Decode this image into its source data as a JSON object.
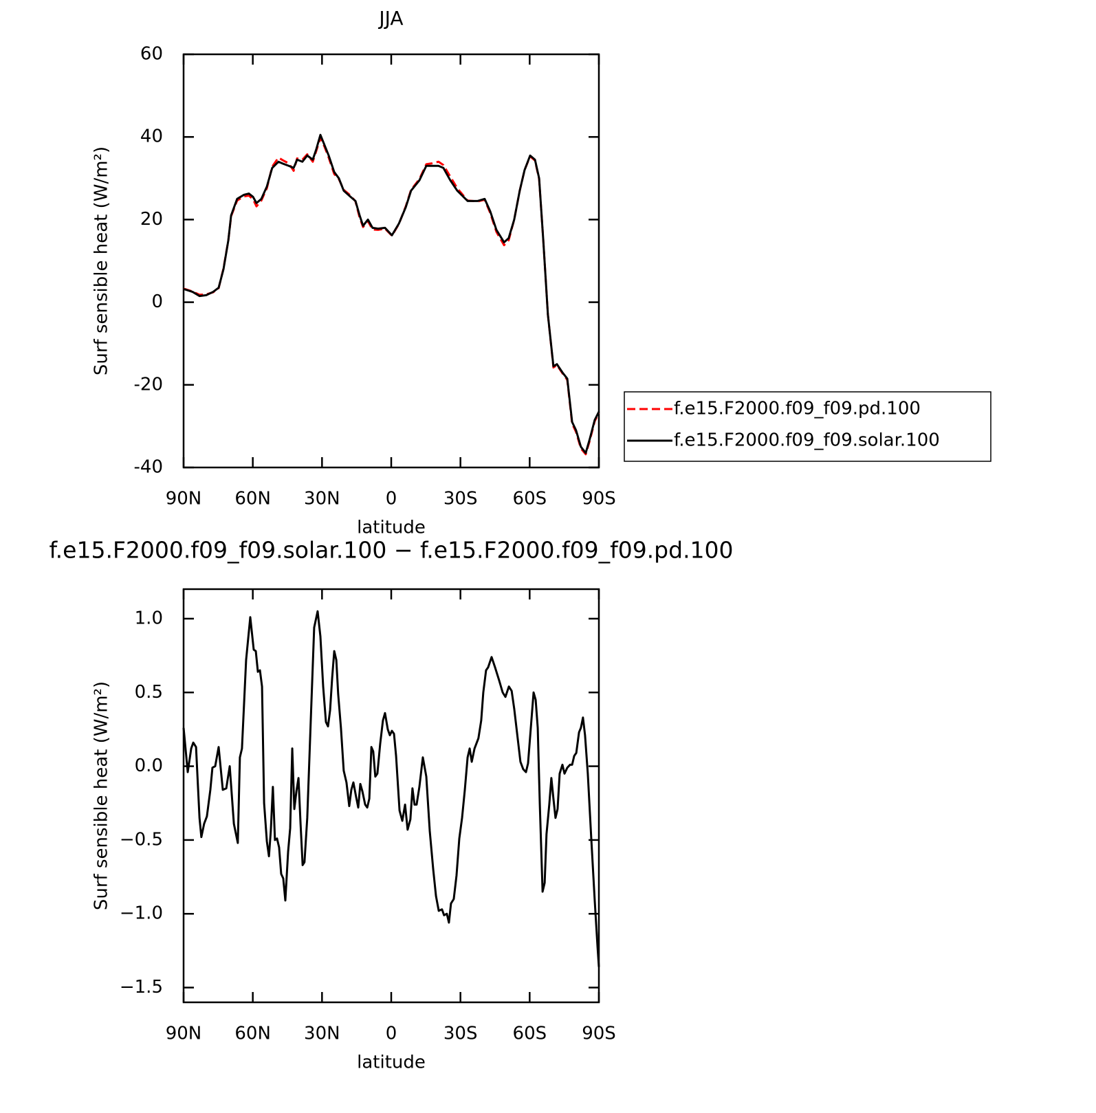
{
  "chart_data": [
    {
      "type": "line",
      "title": "JJA",
      "y_label": "Surf sensible heat (W/m²)",
      "x_label": "latitude",
      "xlim": [
        90,
        -90
      ],
      "xticks": [
        {
          "value": 90,
          "label": "90N"
        },
        {
          "value": 60,
          "label": "60N"
        },
        {
          "value": 30,
          "label": "30N"
        },
        0,
        {
          "value": -30,
          "label": "30S"
        },
        {
          "value": -60,
          "label": "60S"
        },
        {
          "value": -90,
          "label": "90S"
        }
      ],
      "ylim": [
        -40,
        60
      ],
      "yticks": [
        -40,
        -20,
        0,
        20,
        40,
        60
      ],
      "legend": "right",
      "x": [
        90,
        86.1,
        83.1,
        80.2,
        77.2,
        74.8,
        72.7,
        70.6,
        69.4,
        66.8,
        63.8,
        61.7,
        59.9,
        58.4,
        56.3,
        53.9,
        51.6,
        48.9,
        46.8,
        44.4,
        42.3,
        40.8,
        38.5,
        36.4,
        34.0,
        32.5,
        30.7,
        28.9,
        27.1,
        24.7,
        22.7,
        20.6,
        17.6,
        15.5,
        13.7,
        12.2,
        10.1,
        8.1,
        5.7,
        2.7,
        -0.3,
        -3.3,
        -6.3,
        -8.6,
        -12.2,
        -15.2,
        -17.6,
        -20.5,
        -22.6,
        -25.6,
        -28.6,
        -33.1,
        -37.5,
        -40.5,
        -42.9,
        -45.6,
        -48.9,
        -50.9,
        -53.3,
        -55.7,
        -57.8,
        -60.2,
        -62.3,
        -64.1,
        -65.9,
        -67.9,
        -70.3,
        -71.8,
        -74.2,
        -76.3,
        -78.4,
        -80.1,
        -82.2,
        -84.3,
        -86.1,
        -88.2,
        -90
      ],
      "series": [
        {
          "name": "f.e15.F2000.f09_f09.pd.100",
          "color": "#ff0000",
          "linestyle": "dashed",
          "values": [
            3.3,
            2.6,
            1.8,
            1.9,
            2.4,
            3.4,
            8.2,
            15,
            20.8,
            24.6,
            25.6,
            25.8,
            24.9,
            23.2,
            24.6,
            27.6,
            32.8,
            35,
            34.3,
            33.6,
            31.8,
            34.8,
            34.5,
            35.8,
            34,
            36.6,
            39.8,
            37.6,
            35,
            31,
            29.8,
            27.2,
            25.8,
            24.4,
            20.5,
            18.2,
            19.6,
            17.6,
            17.5,
            17.8,
            16.1,
            18.9,
            23.2,
            27.2,
            29.8,
            33.4,
            33.6,
            34,
            33.2,
            30.4,
            27.6,
            24.6,
            24.4,
            24.8,
            21.6,
            17,
            13.8,
            15,
            20,
            27,
            32,
            35.3,
            34.3,
            29.8,
            15,
            -3,
            -15.8,
            -15.2,
            -17.2,
            -18.8,
            -29.4,
            -31.4,
            -35.4,
            -36.8,
            -33.4,
            -28.8,
            -26.8
          ]
        },
        {
          "name": "f.e15.F2000.f09_f09.solar.100",
          "color": "#000000",
          "linestyle": "solid",
          "values": [
            3.2,
            2.5,
            1.5,
            1.7,
            2.5,
            3.5,
            8,
            15,
            21,
            25,
            26,
            26.3,
            25.5,
            24,
            25,
            28,
            32.5,
            34,
            33.5,
            33,
            32.5,
            34.5,
            34,
            35.5,
            34.5,
            37,
            40.5,
            38,
            35.5,
            31.5,
            30,
            27,
            25.5,
            24.5,
            21,
            18.5,
            20,
            18,
            17.8,
            18,
            16.2,
            19,
            23,
            27,
            29.5,
            33,
            33,
            33,
            32.5,
            29.5,
            27,
            24.5,
            24.5,
            25,
            22,
            17.5,
            14.5,
            15.5,
            20,
            27,
            32,
            35.5,
            34.5,
            30,
            15,
            -3,
            -15.5,
            -15,
            -17,
            -18.5,
            -29,
            -31,
            -35,
            -36.5,
            -33,
            -28.5,
            -26.5
          ]
        }
      ]
    },
    {
      "type": "line",
      "title": "f.e15.F2000.f09_f09.solar.100 − f.e15.F2000.f09_f09.pd.100",
      "y_label": "Surf sensible heat (W/m²)",
      "x_label": "latitude",
      "xlim": [
        90,
        -90
      ],
      "xticks": [
        {
          "value": 90,
          "label": "90N"
        },
        {
          "value": 60,
          "label": "60N"
        },
        {
          "value": 30,
          "label": "30N"
        },
        0,
        {
          "value": -30,
          "label": "30S"
        },
        {
          "value": -60,
          "label": "60S"
        },
        {
          "value": -90,
          "label": "90S"
        }
      ],
      "ylim": [
        -1.6,
        1.2
      ],
      "yticks": [
        {
          "value": -1.5,
          "label": "−1.5"
        },
        {
          "value": -1.0,
          "label": "−1.0"
        },
        {
          "value": -0.5,
          "label": "−0.5"
        },
        {
          "value": 0,
          "label": "0.0"
        },
        0.5,
        {
          "value": 1.0,
          "label": "1.0"
        }
      ],
      "x": [
        90.0,
        88.2,
        86.7,
        85.8,
        84.6,
        83.1,
        82.3,
        81.1,
        79.9,
        78.4,
        77.5,
        76.3,
        74.8,
        73.0,
        71.5,
        70.0,
        68.2,
        66.5,
        65.6,
        64.7,
        62.9,
        61.1,
        59.6,
        58.7,
        57.8,
        56.9,
        56.0,
        55.1,
        53.9,
        53.0,
        52.2,
        51.3,
        50.4,
        49.5,
        48.6,
        47.7,
        46.8,
        45.9,
        44.7,
        43.8,
        42.9,
        42.0,
        41.1,
        40.2,
        39.3,
        38.4,
        37.6,
        36.4,
        34.9,
        33.4,
        31.9,
        30.7,
        29.5,
        28.3,
        27.4,
        26.5,
        25.6,
        24.7,
        23.8,
        23.0,
        21.8,
        20.6,
        19.4,
        18.2,
        17.3,
        16.4,
        15.2,
        14.3,
        13.4,
        12.5,
        11.3,
        10.4,
        9.5,
        8.6,
        7.8,
        6.9,
        6.0,
        4.8,
        3.6,
        2.7,
        1.5,
        0.6,
        -0.3,
        -1.2,
        -2.1,
        -3.6,
        -4.8,
        -6.0,
        -7.1,
        -8.3,
        -9.2,
        -10.1,
        -11.0,
        -12.2,
        -13.7,
        -15.2,
        -16.7,
        -18.2,
        -19.4,
        -20.6,
        -22.0,
        -22.9,
        -24.1,
        -25.0,
        -25.9,
        -27.1,
        -28.3,
        -29.5,
        -30.7,
        -31.9,
        -33.1,
        -34.0,
        -34.9,
        -36.1,
        -37.8,
        -39.0,
        -39.9,
        -41.1,
        -42.0,
        -43.5,
        -45.0,
        -46.8,
        -48.3,
        -49.5,
        -51.0,
        -52.2,
        -53.3,
        -54.5,
        -56.0,
        -57.2,
        -58.4,
        -59.3,
        -60.5,
        -61.7,
        -62.6,
        -63.5,
        -64.4,
        -65.6,
        -66.5,
        -67.3,
        -68.5,
        -69.4,
        -70.3,
        -71.2,
        -72.1,
        -73.0,
        -74.2,
        -75.1,
        -76.3,
        -77.5,
        -78.4,
        -79.3,
        -80.2,
        -81.4,
        -82.2,
        -83.1,
        -84.0,
        -85.2,
        -86.7,
        -88.2,
        -89.4,
        -90.0
      ],
      "series": [
        {
          "name": "f.e15.F2000.f09_f09.solar.100 − f.e15.F2000.f09_f09.pd.100",
          "color": "#000000",
          "linestyle": "solid",
          "values": [
            0.26,
            -0.04,
            0.12,
            0.16,
            0.13,
            -0.35,
            -0.48,
            -0.39,
            -0.34,
            -0.16,
            -0.01,
            0.0,
            0.13,
            -0.16,
            -0.15,
            0.0,
            -0.39,
            -0.52,
            0.06,
            0.12,
            0.72,
            1.01,
            0.79,
            0.78,
            0.64,
            0.65,
            0.54,
            -0.25,
            -0.51,
            -0.61,
            -0.44,
            -0.14,
            -0.5,
            -0.49,
            -0.55,
            -0.73,
            -0.76,
            -0.91,
            -0.58,
            -0.42,
            0.12,
            -0.29,
            -0.17,
            -0.08,
            -0.39,
            -0.67,
            -0.65,
            -0.35,
            0.3,
            0.94,
            1.05,
            0.88,
            0.54,
            0.3,
            0.27,
            0.38,
            0.6,
            0.78,
            0.72,
            0.49,
            0.26,
            -0.03,
            -0.11,
            -0.27,
            -0.16,
            -0.11,
            -0.21,
            -0.28,
            -0.12,
            -0.17,
            -0.26,
            -0.28,
            -0.22,
            0.13,
            0.1,
            -0.07,
            -0.05,
            0.15,
            0.31,
            0.36,
            0.25,
            0.21,
            0.24,
            0.22,
            0.07,
            -0.3,
            -0.37,
            -0.26,
            -0.43,
            -0.36,
            -0.15,
            -0.26,
            -0.26,
            -0.14,
            0.06,
            -0.07,
            -0.44,
            -0.7,
            -0.88,
            -0.98,
            -0.97,
            -1.01,
            -1.0,
            -1.06,
            -0.93,
            -0.9,
            -0.74,
            -0.49,
            -0.35,
            -0.16,
            0.06,
            0.12,
            0.03,
            0.12,
            0.19,
            0.31,
            0.5,
            0.65,
            0.67,
            0.74,
            0.67,
            0.58,
            0.5,
            0.47,
            0.54,
            0.51,
            0.39,
            0.23,
            0.03,
            -0.02,
            -0.04,
            0.02,
            0.26,
            0.5,
            0.45,
            0.26,
            -0.26,
            -0.85,
            -0.79,
            -0.46,
            -0.26,
            -0.08,
            -0.22,
            -0.35,
            -0.29,
            -0.05,
            0.01,
            -0.05,
            -0.01,
            0.01,
            0.01,
            0.07,
            0.09,
            0.23,
            0.26,
            0.33,
            0.21,
            -0.05,
            -0.49,
            -0.91,
            -1.22,
            -1.36
          ]
        }
      ]
    }
  ]
}
